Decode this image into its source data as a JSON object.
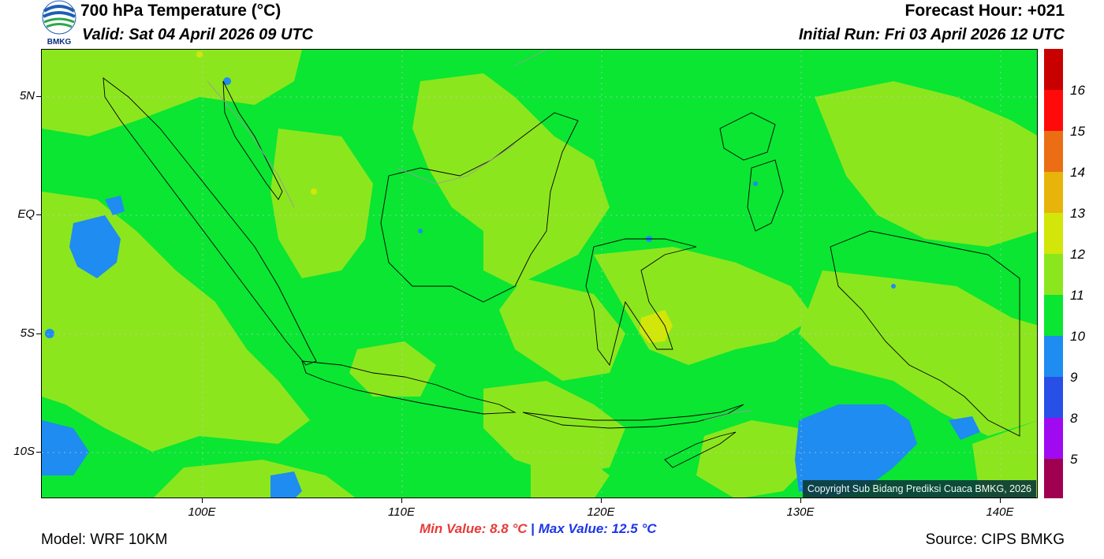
{
  "header": {
    "title": "700 hPa Temperature (°C)",
    "valid": "Valid: Sat 04 April 2026 09 UTC",
    "forecast_hour": "Forecast Hour: +021",
    "initial_run": "Initial Run: Fri 03 April 2026 12 UTC",
    "logo_text": "BMKG"
  },
  "map": {
    "lat_labels": [
      "5N",
      "EQ",
      "5S",
      "10S"
    ],
    "lon_labels": [
      "100E",
      "110E",
      "120E",
      "130E",
      "140E"
    ],
    "copyright": "Copyright Sub Bidang Prediksi Cuaca BMKG, 2026",
    "field_colors": {
      "base_11": "#0ae632",
      "band_12": "#8ce61e",
      "band_13": "#d2e60a",
      "band_10": "#1e8cf0"
    }
  },
  "colorbar": {
    "labels": [
      "16",
      "15",
      "14",
      "13",
      "12",
      "11",
      "10",
      "9",
      "8",
      "5"
    ],
    "colors": [
      "#c80000",
      "#ff0a0a",
      "#eb6e14",
      "#e6b40a",
      "#d2e60a",
      "#8ce61e",
      "#0ae632",
      "#1e8cf0",
      "#2850e6",
      "#a00af0",
      "#a00050"
    ]
  },
  "footer": {
    "min_value": "Min Value: 8.8 °C",
    "separator": "|",
    "max_value": "Max Value: 12.5 °C",
    "model": "Model: WRF 10KM",
    "source": "Source: CIPS BMKG"
  }
}
